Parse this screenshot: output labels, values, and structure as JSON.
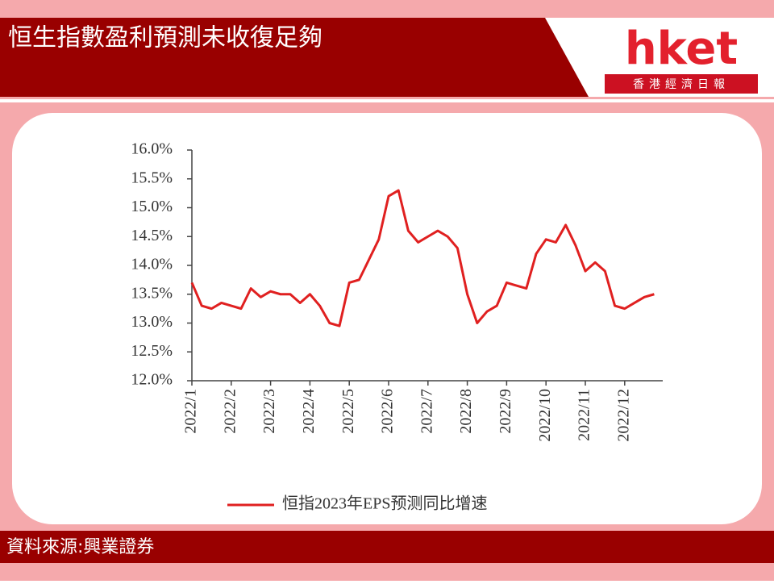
{
  "header": {
    "title": "恒生指數盈利預測未收復足夠",
    "logo": "hket",
    "logo_subtitle": "香港經濟日報"
  },
  "source": "資料來源:興業證券",
  "chart_data": {
    "type": "line",
    "categories": [
      "2022/1",
      null,
      null,
      null,
      "2022/2",
      null,
      null,
      null,
      "2022/3",
      null,
      null,
      null,
      "2022/4",
      null,
      null,
      null,
      "2022/5",
      null,
      null,
      null,
      "2022/6",
      null,
      null,
      null,
      "2022/7",
      null,
      null,
      null,
      "2022/8",
      null,
      null,
      null,
      "2022/9",
      null,
      null,
      null,
      "2022/10",
      null,
      null,
      null,
      "2022/11",
      null,
      null,
      null,
      "2022/12",
      null,
      null,
      null
    ],
    "series": [
      {
        "name": "恒指2023年EPS预测同比增速",
        "color": "#e02020",
        "values": [
          13.7,
          13.3,
          13.25,
          13.35,
          13.3,
          13.25,
          13.6,
          13.45,
          13.55,
          13.5,
          13.5,
          13.35,
          13.5,
          13.3,
          13.0,
          12.95,
          13.7,
          13.75,
          14.1,
          14.45,
          15.2,
          15.3,
          14.6,
          14.4,
          14.5,
          14.6,
          14.5,
          14.3,
          13.5,
          13.0,
          13.2,
          13.3,
          13.7,
          13.65,
          13.6,
          14.2,
          14.45,
          14.4,
          14.7,
          14.35,
          13.9,
          14.05,
          13.9,
          13.3,
          13.25,
          13.35,
          13.45,
          13.5
        ]
      }
    ],
    "ylim": [
      12,
      16
    ],
    "yticks": [
      {
        "value": 12,
        "label": "12.0%"
      },
      {
        "value": 12.5,
        "label": "12.5%"
      },
      {
        "value": 13,
        "label": "13.0%"
      },
      {
        "value": 13.5,
        "label": "13.5%"
      },
      {
        "value": 14,
        "label": "14.0%"
      },
      {
        "value": 14.5,
        "label": "14.5%"
      },
      {
        "value": 15,
        "label": "15.0%"
      },
      {
        "value": 15.5,
        "label": "15.5%"
      },
      {
        "value": 16,
        "label": "16.0%"
      }
    ]
  }
}
